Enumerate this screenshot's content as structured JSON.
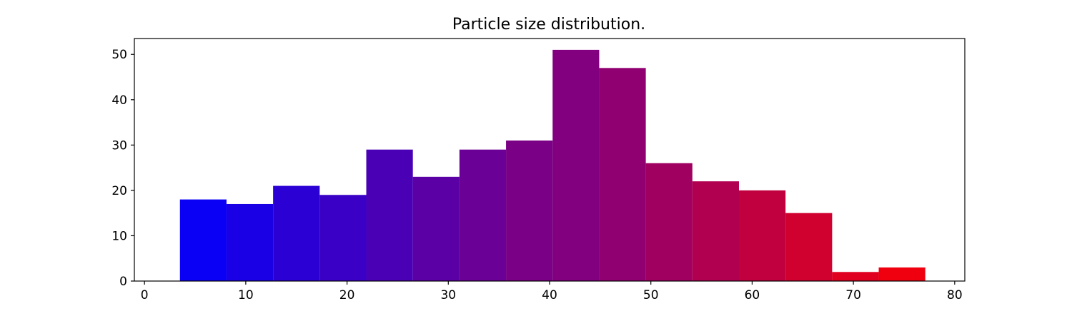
{
  "chart_data": {
    "type": "bar",
    "title": "Particle size distribution.",
    "xlabel": "",
    "ylabel": "",
    "xlim": [
      -1,
      81
    ],
    "ylim": [
      0,
      53.5
    ],
    "xticks": [
      0,
      10,
      20,
      30,
      40,
      50,
      60,
      70,
      80
    ],
    "yticks": [
      0,
      10,
      20,
      30,
      40,
      50
    ],
    "bin_edges": [
      3.5,
      8.1,
      12.7,
      17.3,
      21.9,
      26.5,
      31.1,
      35.7,
      40.3,
      44.9,
      49.5,
      54.1,
      58.7,
      63.3,
      67.9,
      72.5,
      77.1
    ],
    "values": [
      18,
      17,
      21,
      19,
      29,
      23,
      29,
      31,
      51,
      47,
      26,
      22,
      20,
      15,
      2,
      3
    ],
    "colors": [
      "#0a00f5",
      "#1a00e5",
      "#2a00d5",
      "#3a00c5",
      "#4a00b5",
      "#5a00a5",
      "#6a0095",
      "#7a0085",
      "#820080",
      "#900070",
      "#a00060",
      "#b0004f",
      "#c0003f",
      "#d0002f",
      "#e0001f",
      "#f0000f"
    ],
    "grid": false,
    "legend": "none"
  }
}
